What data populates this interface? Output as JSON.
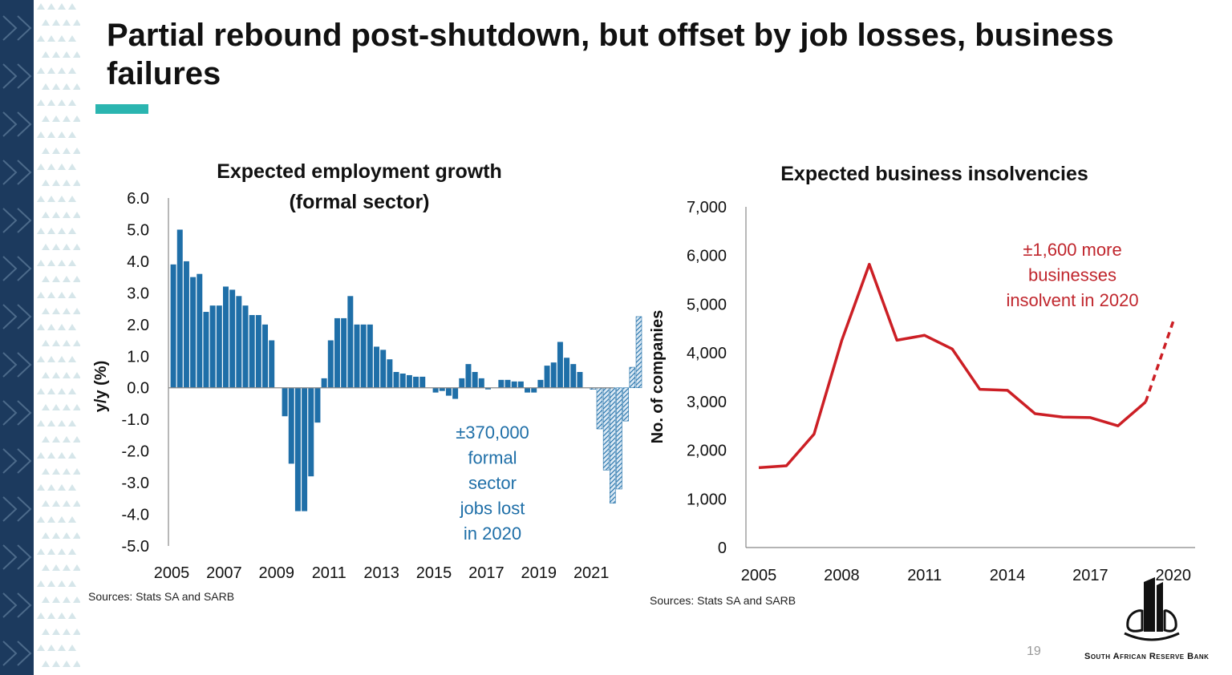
{
  "slide": {
    "title": "Partial rebound post-shutdown, but offset by job losses, business failures",
    "page_number": "19",
    "bank_name": "South African Reserve Bank",
    "accent_color": "#2bb5b0"
  },
  "chart_data": [
    {
      "type": "bar",
      "title_line1": "Expected employment growth",
      "title_line2": "(formal sector)",
      "ylabel": "y/y (%)",
      "ylim": [
        -5.0,
        6.0
      ],
      "yticks": [
        "6.0",
        "5.0",
        "4.0",
        "3.0",
        "2.0",
        "1.0",
        "0.0",
        "-1.0",
        "-2.0",
        "-3.0",
        "-4.0",
        "-5.0"
      ],
      "xticks": [
        "2005",
        "2007",
        "2009",
        "2011",
        "2013",
        "2015",
        "2017",
        "2019",
        "2021"
      ],
      "x_start": 2005,
      "x_step": 0.25,
      "values": [
        3.9,
        5.0,
        4.0,
        3.5,
        3.6,
        2.4,
        2.6,
        2.6,
        3.2,
        3.1,
        2.9,
        2.6,
        2.3,
        2.3,
        2.0,
        1.5,
        0,
        -0.9,
        -2.4,
        -3.9,
        -3.9,
        -2.8,
        -1.1,
        0.3,
        1.5,
        2.2,
        2.2,
        2.9,
        2.0,
        2.0,
        2.0,
        1.3,
        1.2,
        0.9,
        0.5,
        0.45,
        0.4,
        0.35,
        0.35,
        0,
        -0.15,
        -0.1,
        -0.25,
        -0.35,
        0.3,
        0.75,
        0.5,
        0.3,
        -0.05,
        0,
        0.25,
        0.25,
        0.2,
        0.2,
        -0.15,
        -0.15,
        0.25,
        0.7,
        0.8,
        1.45,
        0.95,
        0.75,
        0.5,
        0,
        -0.05,
        -1.3,
        -2.6,
        -3.65,
        -3.2,
        -1.05,
        0.65,
        2.25
      ],
      "projection_start_index": 64,
      "annotation": [
        "±370,000",
        "formal",
        "sector",
        "jobs lost",
        "in 2020"
      ],
      "source": "Sources: Stats SA and SARB",
      "color": "#1f6fa8"
    },
    {
      "type": "line",
      "title": "Expected business insolvencies",
      "ylabel": "No. of companies",
      "ylim": [
        0,
        7000
      ],
      "yticks": [
        "7,000",
        "6,000",
        "5,000",
        "4,000",
        "3,000",
        "2,000",
        "1,000",
        "0"
      ],
      "xticks": [
        "2005",
        "2008",
        "2011",
        "2014",
        "2017",
        "2020"
      ],
      "x": [
        2005,
        2006,
        2007,
        2008,
        2009,
        2010,
        2011,
        2012,
        2013,
        2014,
        2015,
        2016,
        2017,
        2018,
        2019,
        2020
      ],
      "values": [
        1640,
        1680,
        2330,
        4250,
        5820,
        4260,
        4360,
        4080,
        3250,
        3230,
        2750,
        2680,
        2670,
        2500,
        2990,
        4650
      ],
      "projection_from_x": 2019,
      "annotation": [
        "±1,600 more",
        "businesses",
        "insolvent in 2020"
      ],
      "source": "Sources: Stats SA and SARB",
      "color": "#cc1f25"
    }
  ]
}
